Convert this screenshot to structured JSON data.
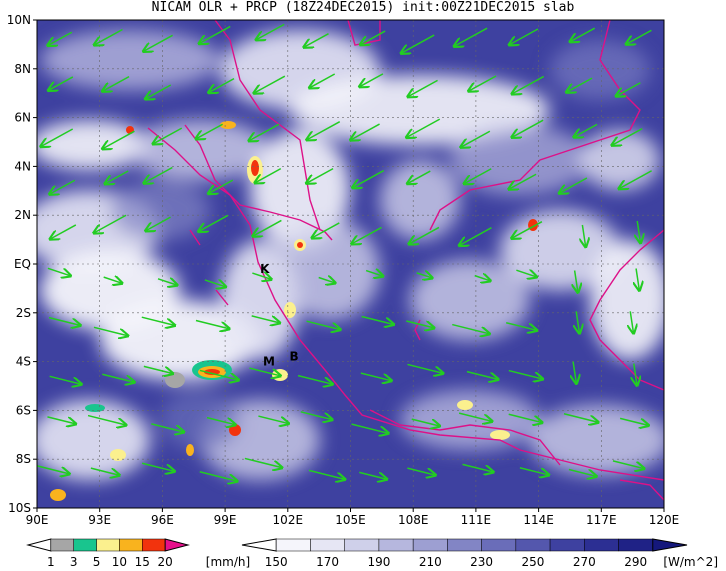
{
  "title": "NICAM OLR + PRCP (18Z24DEC2015) init:00Z21DEC2015 slab",
  "map": {
    "lon_range": [
      90,
      120
    ],
    "lat_range": [
      -10,
      10
    ],
    "x_ticks": [
      "90E",
      "93E",
      "96E",
      "99E",
      "102E",
      "105E",
      "108E",
      "111E",
      "114E",
      "117E",
      "120E"
    ],
    "y_ticks": [
      "10N",
      "8N",
      "6N",
      "4N",
      "2N",
      "EQ",
      "2S",
      "4S",
      "6S",
      "8S",
      "10S"
    ],
    "gridlines": true,
    "station_markers": [
      {
        "label": "K",
        "lon": 100.9,
        "lat": -0.2
      },
      {
        "label": "M",
        "lon": 101.1,
        "lat": -4.0
      },
      {
        "label": "B",
        "lon": 102.3,
        "lat": -3.8
      }
    ],
    "wind_arrow_color": "#22cc22",
    "coastline_color": "#dd1188"
  },
  "precip_legend": {
    "labels": [
      "1",
      "3",
      "5",
      "10",
      "15",
      "20"
    ],
    "unit": "[mm/h]",
    "colors": [
      "#a6a6a6",
      "#19c58e",
      "#fbf08e",
      "#f9b31e",
      "#f2330d",
      "#e60f8b"
    ]
  },
  "olr_legend": {
    "labels": [
      "150",
      "170",
      "190",
      "210",
      "230",
      "250",
      "270",
      "290"
    ],
    "unit": "[W/m^2]",
    "colors": [
      "#f5f5fb",
      "#e6e6f4",
      "#cfd0ea",
      "#b6b7de",
      "#9d9fd2",
      "#8285c5",
      "#6a6db9",
      "#5457ad",
      "#3e41a0",
      "#2c2f93",
      "#1f2286",
      "#15187c"
    ]
  }
}
